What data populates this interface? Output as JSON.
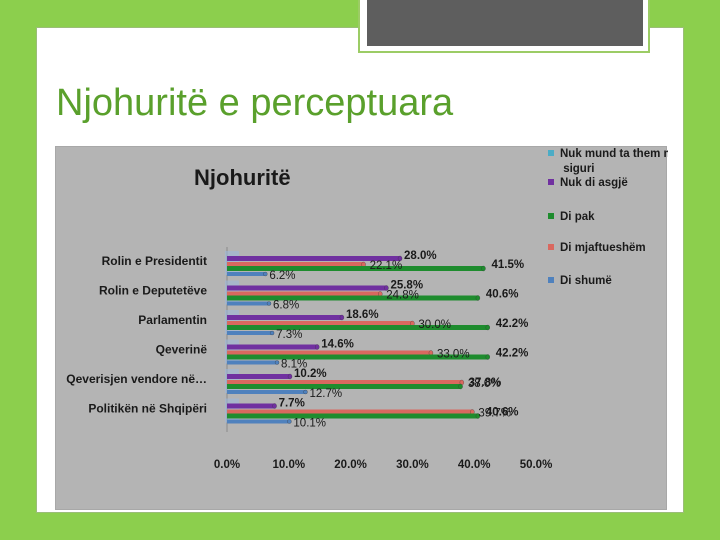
{
  "slide": {
    "title": "Njohuritë e perceptuara"
  },
  "colors": {
    "background_green": "#8ccf4d",
    "title_green": "#5aa02c",
    "chart_bg": "#b4b4b4"
  },
  "chart_data": {
    "type": "bar",
    "orientation": "horizontal",
    "title": "Njohuritë",
    "categories": [
      "Rolin e Presidentit",
      "Rolin e Deputetëve",
      "Parlamentin",
      "Qeverinë",
      "Qeverisjen vendore në…",
      "Politikën në Shqipëri"
    ],
    "series": [
      {
        "name": "Nuk mund ta them me siguri",
        "color": "#4bacc6",
        "values": [
          null,
          null,
          null,
          null,
          null,
          null
        ]
      },
      {
        "name": "Nuk di asgjë",
        "color": "#7030a0",
        "values": [
          28.0,
          25.8,
          18.6,
          14.6,
          10.2,
          7.7
        ]
      },
      {
        "name": "Di pak",
        "color": "#1e8c2e",
        "values": [
          41.5,
          40.6,
          42.2,
          42.2,
          37.8,
          40.6
        ]
      },
      {
        "name": "Di mjaftueshëm",
        "color": "#d9685f",
        "values": [
          22.1,
          24.8,
          30.0,
          33.0,
          38.0,
          39.7
        ]
      },
      {
        "name": "Di shumë",
        "color": "#4f81bd",
        "values": [
          6.2,
          6.8,
          7.3,
          8.1,
          12.7,
          10.1
        ]
      }
    ],
    "data_labels": [
      {
        "cat": 0,
        "series": 1,
        "text": "28.0%"
      },
      {
        "cat": 0,
        "series": 3,
        "text": "22.1%"
      },
      {
        "cat": 0,
        "series": 2,
        "text": "41.5%"
      },
      {
        "cat": 0,
        "series": 4,
        "text": "6.2%"
      },
      {
        "cat": 1,
        "series": 1,
        "text": "25.8%"
      },
      {
        "cat": 1,
        "series": 3,
        "text": "24.8%"
      },
      {
        "cat": 1,
        "series": 2,
        "text": "40.6%"
      },
      {
        "cat": 1,
        "series": 4,
        "text": "6.8%"
      },
      {
        "cat": 2,
        "series": 1,
        "text": "18.6%"
      },
      {
        "cat": 2,
        "series": 3,
        "text": "30.0%"
      },
      {
        "cat": 2,
        "series": 2,
        "text": "42.2%"
      },
      {
        "cat": 2,
        "series": 4,
        "text": "7.3%"
      },
      {
        "cat": 3,
        "series": 1,
        "text": "14.6%"
      },
      {
        "cat": 3,
        "series": 3,
        "text": "33.0%"
      },
      {
        "cat": 3,
        "series": 2,
        "text": "42.2%"
      },
      {
        "cat": 3,
        "series": 4,
        "text": "8.1%"
      },
      {
        "cat": 4,
        "series": 1,
        "text": "10.2%"
      },
      {
        "cat": 4,
        "series": 3,
        "text": "38.0%"
      },
      {
        "cat": 4,
        "series": 2,
        "text": "37.8%"
      },
      {
        "cat": 4,
        "series": 4,
        "text": "12.7%"
      },
      {
        "cat": 5,
        "series": 1,
        "text": "7.7%"
      },
      {
        "cat": 5,
        "series": 3,
        "text": "39.7%"
      },
      {
        "cat": 5,
        "series": 2,
        "text": "40.6%"
      },
      {
        "cat": 5,
        "series": 4,
        "text": "10.1%"
      }
    ],
    "x_ticks": [
      "0.0%",
      "10.0%",
      "20.0%",
      "30.0%",
      "40.0%",
      "50.0%"
    ],
    "xlim": [
      0,
      50
    ],
    "grid": false,
    "legend_position": "right"
  }
}
